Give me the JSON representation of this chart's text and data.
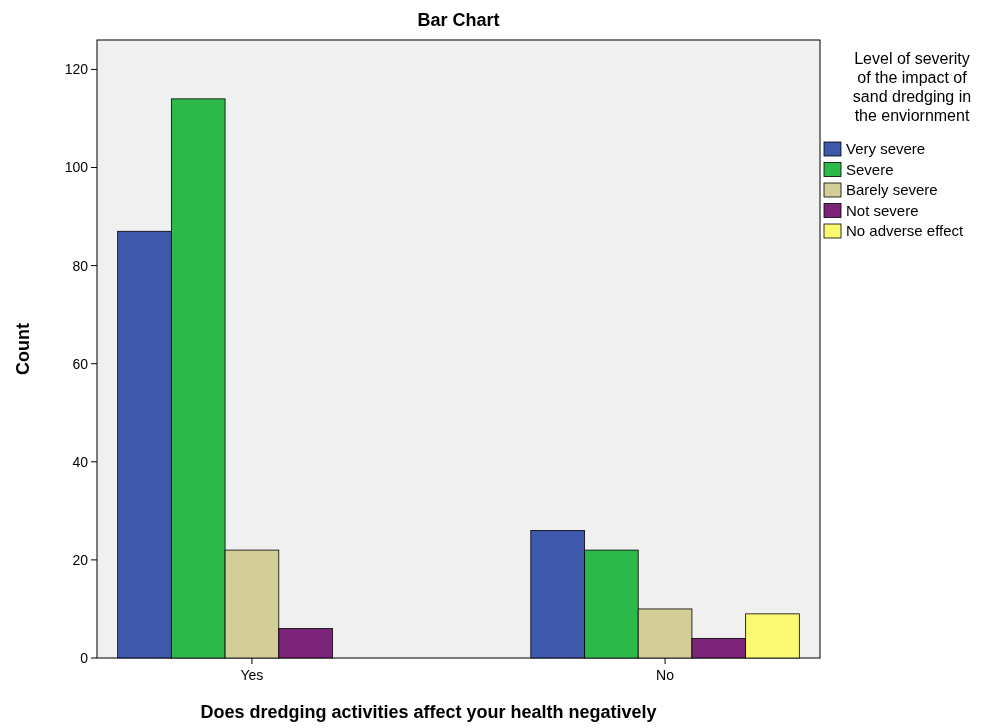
{
  "chart_data": {
    "type": "bar",
    "title": "Bar Chart",
    "xlabel": "Does dredging activities affect your health negatively",
    "ylabel": "Count",
    "legend_title": "Level of severity of the impact of sand dredging in the enviornment",
    "categories": [
      "Yes",
      "No"
    ],
    "series": [
      {
        "name": "Very severe",
        "color": "#3e58ac",
        "values": [
          87,
          26
        ]
      },
      {
        "name": "Severe",
        "color": "#2db84a",
        "values": [
          114,
          22
        ]
      },
      {
        "name": "Barely severe",
        "color": "#d3ce97",
        "values": [
          22,
          10
        ]
      },
      {
        "name": "Not severe",
        "color": "#7b2479",
        "values": [
          6,
          4
        ]
      },
      {
        "name": "No adverse effect",
        "color": "#fbf871",
        "values": [
          null,
          9
        ]
      }
    ],
    "ylim": [
      0,
      126
    ],
    "yticks": [
      0,
      20,
      40,
      60,
      80,
      100,
      120
    ],
    "grid": false,
    "legend": "right"
  }
}
